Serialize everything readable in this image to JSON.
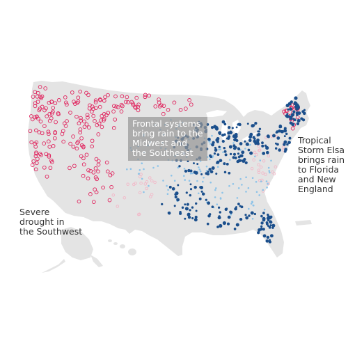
{
  "map": {
    "land_color": "#e4e4e4",
    "dry_color": "#e0245e",
    "wet_dark_color": "#1b4f8c",
    "wet_light_color": "#8dc3e8"
  },
  "annotations": {
    "midwest": "Frontal systems\nbring rain to the\nMidwest and\nthe Southeast",
    "elsa": "Tropical\nStorm Elsa\nbrings rain\nto Florida\nand New\nEngland",
    "southwest": "Severe\ndrought in\nthe Southwest"
  }
}
